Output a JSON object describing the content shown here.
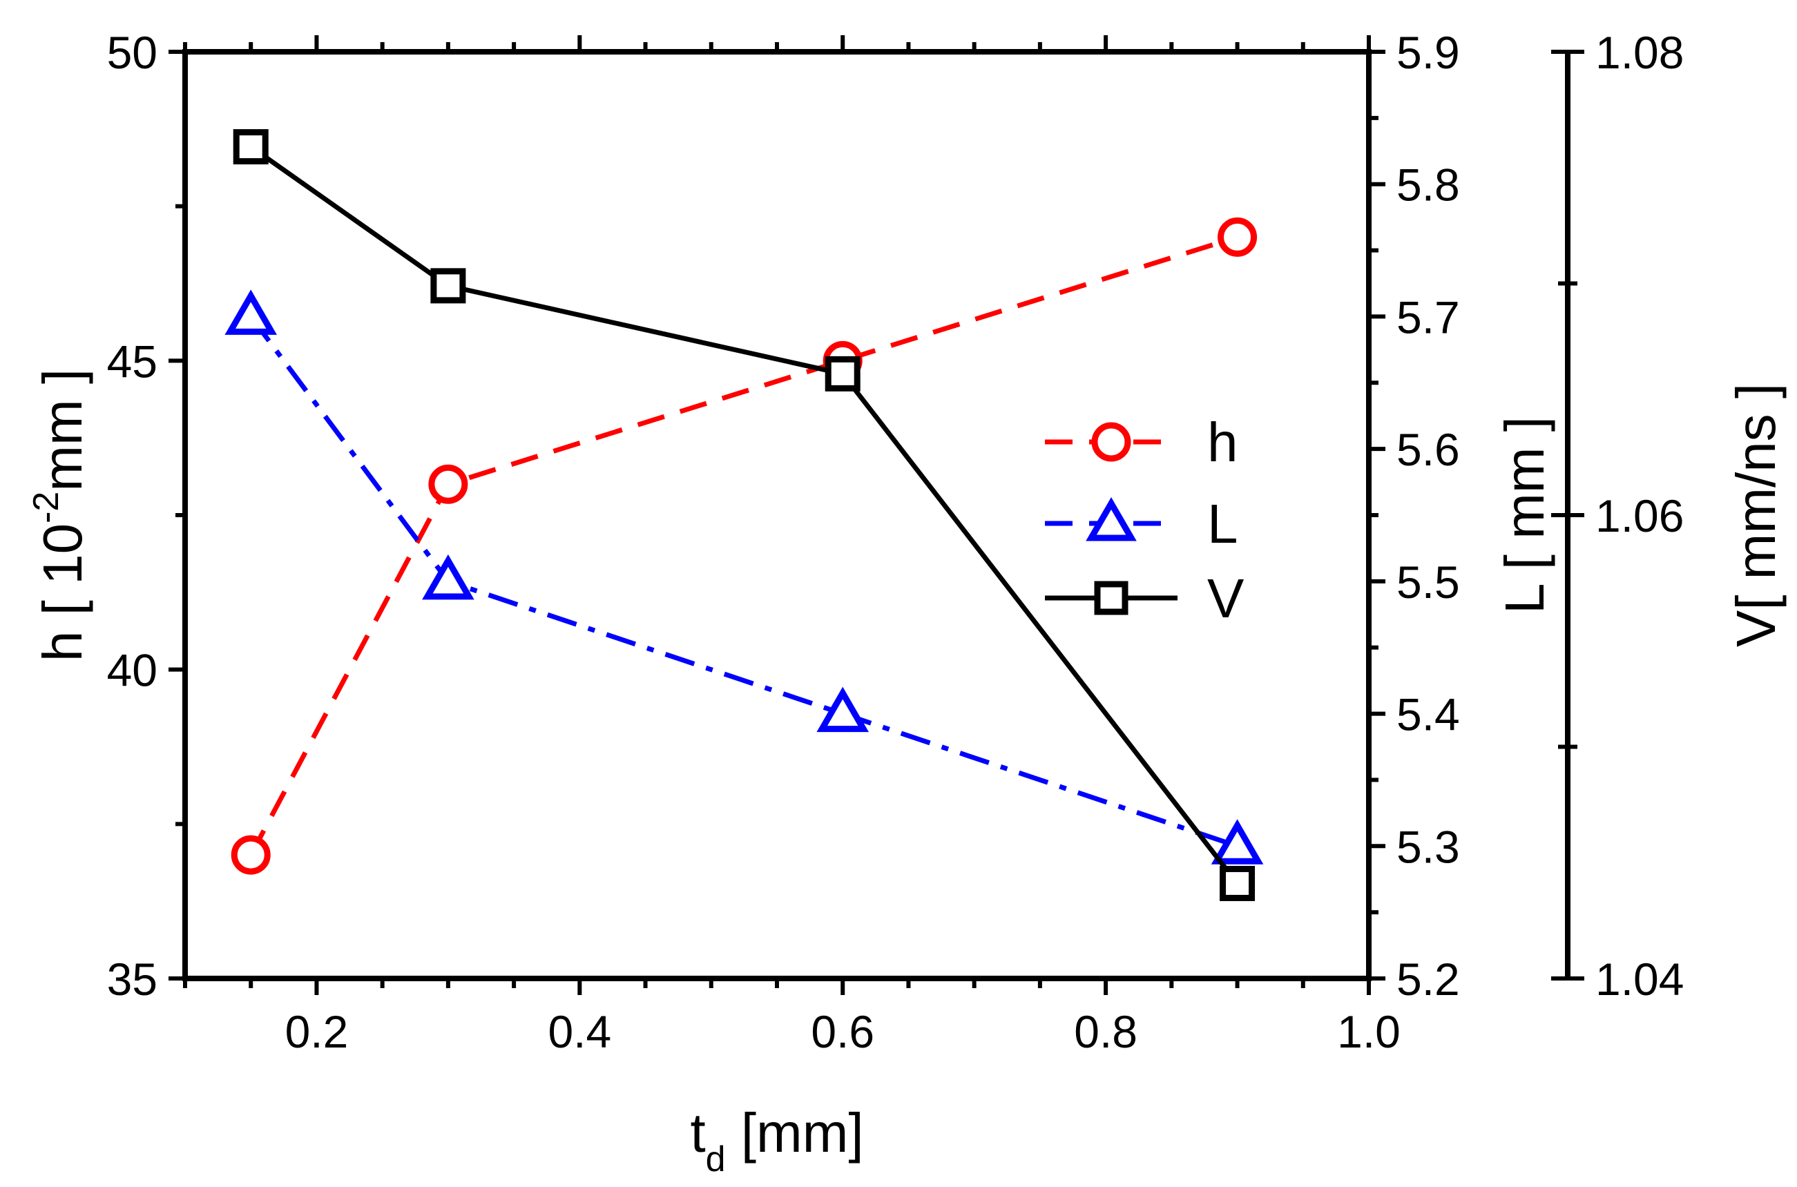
{
  "chart_data": {
    "type": "line",
    "x_axis": {
      "label_main": "t",
      "label_sub": "d",
      "label_rest": " [mm]",
      "range": [
        0.1,
        1.0
      ],
      "ticks": [
        "0.2",
        "0.4",
        "0.6",
        "0.8",
        "1.0"
      ]
    },
    "y_axes": {
      "h": {
        "label_prefix": "h [ 10",
        "label_sup": "-2",
        "label_suffix": "mm ]",
        "range": [
          35,
          50
        ],
        "ticks": [
          "35",
          "40",
          "45",
          "50"
        ]
      },
      "L": {
        "label": "L [ mm ]",
        "range": [
          5.2,
          5.9
        ],
        "ticks": [
          "5.2",
          "5.3",
          "5.4",
          "5.5",
          "5.6",
          "5.7",
          "5.8",
          "5.9"
        ]
      },
      "V": {
        "label": "V[ mm/ns ]",
        "range": [
          1.04,
          1.08
        ],
        "ticks": [
          "1.04",
          "1.06",
          "1.08"
        ]
      }
    },
    "x": [
      0.15,
      0.3,
      0.6,
      0.9
    ],
    "series": [
      {
        "name": "h",
        "axis": "h",
        "marker": "circle",
        "style": "dash",
        "color": "#ff0000",
        "values": [
          37.0,
          43.0,
          45.0,
          47.0
        ]
      },
      {
        "name": "L",
        "axis": "L",
        "marker": "triangle",
        "style": "dashdot",
        "color": "#0000ff",
        "values": [
          5.7,
          5.5,
          5.4,
          5.3
        ]
      },
      {
        "name": "V",
        "axis": "V",
        "marker": "square",
        "style": "solid",
        "color": "#000000",
        "values": [
          1.0759,
          1.0699,
          1.0661,
          1.0441
        ]
      }
    ],
    "legend": {
      "position": "middle-right",
      "entries": [
        "h",
        "L",
        "V"
      ]
    }
  }
}
